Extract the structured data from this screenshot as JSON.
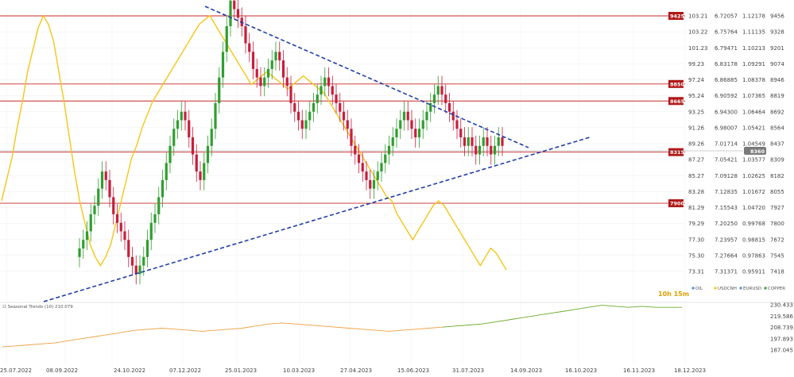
{
  "chart_data": {
    "type": "line",
    "instruments": [
      "OIL",
      "USDCNH",
      "EURUSD",
      "COPPER"
    ],
    "colors": {
      "oil_up": "#2f9e2f",
      "oil_down": "#c81e3c",
      "usdcnh": "#f5c518",
      "eurusd": "#4a90d9",
      "copper": "#2f9e2f",
      "indicator": "#f0a040",
      "indicator_recent": "#6aaa2a",
      "trendline": "#1f3fa8",
      "level": "#c82828"
    },
    "x_labels": [
      "25.07.2022",
      "08.09.2022",
      "24.10.2022",
      "07.12.2022",
      "25.01.2023",
      "10.03.2023",
      "27.04.2023",
      "15.06.2023",
      "31.07.2023",
      "14.09.2023",
      "16.10.2023",
      "16.11.2023",
      "18.12.2023"
    ],
    "price_axis_1": [
      "103.21",
      "103.22",
      "101.23",
      "99.23",
      "97.24",
      "95.24",
      "93.25",
      "91.26",
      "89.26",
      "87.27",
      "85.27",
      "83.28",
      "81.29",
      "79.29",
      "77.30",
      "75.30",
      "73.31"
    ],
    "price_axis_2": [
      "6.72057",
      "6.75764",
      "6.79471",
      "6.83178",
      "6.86885",
      "6.90592",
      "6.94300",
      "6.98007",
      "7.01714",
      "7.05421",
      "7.09128",
      "7.12835",
      "7.15543",
      "7.20250",
      "7.23957",
      "7.27664",
      "7.31371"
    ],
    "price_axis_3": [
      "1.12178",
      "1.11135",
      "1.10213",
      "1.09291",
      "1.08378",
      "1.07365",
      "1.06464",
      "1.05421",
      "1.04549",
      "1.03577",
      "1.02625",
      "1.01672",
      "1.04720",
      "0.99768",
      "0.98815",
      "0.97863",
      "0.95911"
    ],
    "price_axis_4": [
      "9456",
      "9328",
      "9201",
      "9074",
      "8946",
      "8819",
      "8692",
      "8564",
      "8437",
      "8309",
      "8182",
      "8055",
      "7927",
      "7800",
      "7672",
      "7545",
      "7418"
    ],
    "levels": [
      {
        "label": "9425",
        "y_label": "103.21"
      },
      {
        "label": "8850",
        "y_label": "95.24"
      },
      {
        "label": "8665",
        "y_label": "93.25"
      },
      {
        "label": "8315",
        "y_label": "87.27"
      },
      {
        "label": "7900",
        "y_label": "81.29"
      }
    ],
    "current_price_label": "8360",
    "timer": "10h 15m",
    "indicator_label": "☷ Seasonal Trends (10) 210.079",
    "indicator_axis": [
      "230.433",
      "219.586",
      "208.739",
      "197.893",
      "187.045"
    ],
    "ohlc_approx_close": [
      76,
      77,
      78,
      80,
      81,
      83,
      85,
      84,
      82,
      80,
      79,
      78,
      77,
      75,
      74,
      73,
      74,
      75,
      77,
      79,
      80,
      82,
      84,
      86,
      88,
      90,
      91,
      92,
      91,
      89,
      87,
      85,
      84,
      86,
      88,
      90,
      93,
      96,
      99,
      102,
      105,
      104,
      103,
      102,
      100,
      99,
      97,
      96,
      95,
      96,
      97,
      98,
      99,
      98,
      96,
      95,
      93,
      92,
      91,
      90,
      91,
      92,
      93,
      94,
      95,
      96,
      95,
      94,
      93,
      92,
      91,
      90,
      88,
      87,
      86,
      85,
      84,
      83,
      84,
      85,
      86,
      87,
      88,
      89,
      90,
      91,
      92,
      91,
      90,
      89,
      90,
      91,
      92,
      93,
      94,
      95,
      94,
      93,
      92,
      91,
      90,
      89,
      88,
      89,
      88,
      87,
      88,
      89,
      88,
      87,
      88,
      89,
      88
    ],
    "usdcnh_approx": [
      7.15,
      7.1,
      7.05,
      6.98,
      6.92,
      6.85,
      6.8,
      6.75,
      6.72,
      6.74,
      6.78,
      6.85,
      6.92,
      7.0,
      7.08,
      7.15,
      7.2,
      7.25,
      7.28,
      7.3,
      7.28,
      7.25,
      7.2,
      7.15,
      7.1,
      7.05,
      7.02,
      6.98,
      6.95,
      6.92,
      6.9,
      6.88,
      6.86,
      6.84,
      6.82,
      6.8,
      6.78,
      6.76,
      6.74,
      6.73,
      6.72,
      6.74,
      6.76,
      6.78,
      6.8,
      6.82,
      6.84,
      6.86,
      6.88,
      6.87,
      6.86,
      6.85,
      6.86,
      6.87,
      6.88,
      6.89,
      6.88,
      6.87,
      6.86,
      6.87,
      6.88,
      6.89,
      6.9,
      6.92,
      6.94,
      6.96,
      6.98,
      7.0,
      7.02,
      7.04,
      7.06,
      7.08,
      7.1,
      7.12,
      7.14,
      7.15,
      7.18,
      7.2,
      7.22,
      7.24,
      7.22,
      7.2,
      7.18,
      7.16,
      7.15,
      7.16,
      7.18,
      7.2,
      7.22,
      7.24,
      7.26,
      7.28,
      7.3,
      7.28,
      7.26,
      7.27,
      7.29,
      7.31
    ],
    "indicator_approx": [
      190,
      191,
      192,
      193,
      194,
      196,
      198,
      200,
      202,
      204,
      206,
      207,
      208,
      207,
      206,
      205,
      206,
      207,
      208,
      210,
      212,
      213,
      212,
      211,
      210,
      209,
      208,
      207,
      206,
      205,
      206,
      207,
      208,
      209,
      210,
      211,
      212,
      214,
      216,
      218,
      220,
      222,
      224,
      226,
      228,
      230,
      229,
      228,
      229,
      228,
      228,
      228
    ]
  }
}
